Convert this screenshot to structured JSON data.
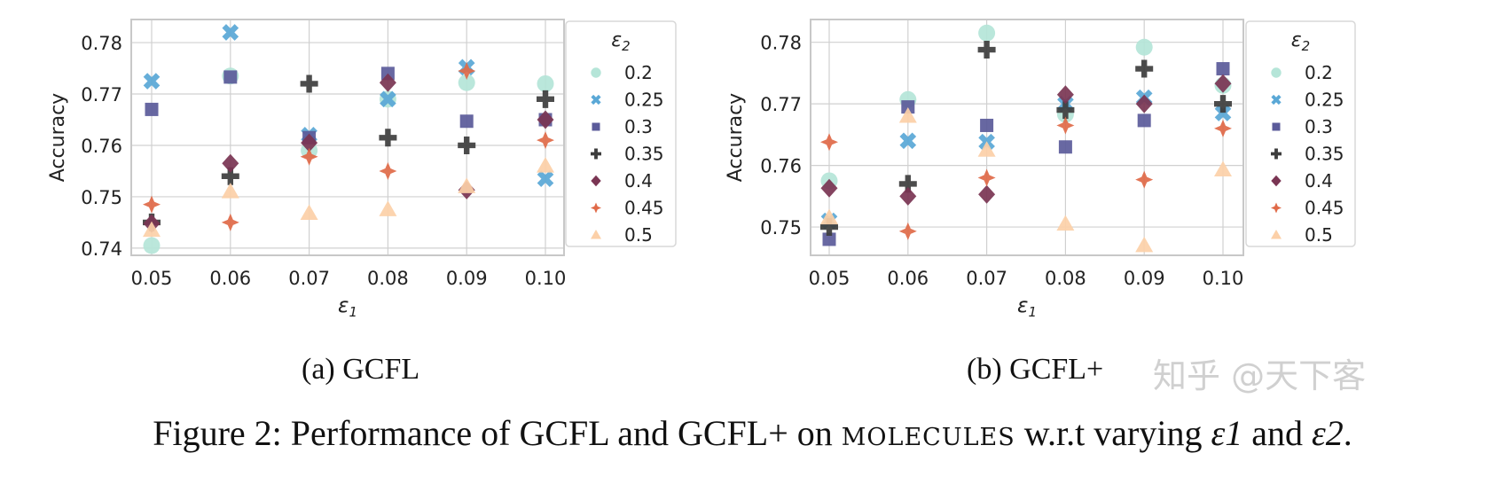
{
  "chart_data": [
    {
      "type": "scatter",
      "subcaption": "(a) GCFL",
      "xlabel": "ε1",
      "ylabel": "Accuracy",
      "x": [
        0.05,
        0.06,
        0.07,
        0.08,
        0.09,
        0.1
      ],
      "xticks": [
        "0.05",
        "0.06",
        "0.07",
        "0.08",
        "0.09",
        "0.10"
      ],
      "yticks": [
        "0.74",
        "0.75",
        "0.76",
        "0.77",
        "0.78"
      ],
      "ylim": [
        0.7386,
        0.7845
      ],
      "grid": true,
      "legend_title": "ε2",
      "legend_position": "outside-right",
      "series": [
        {
          "name": "0.2",
          "marker": "circle",
          "color": "#b5e5d8",
          "values": [
            0.7405,
            0.7735,
            0.759,
            0.769,
            0.7722,
            0.772
          ]
        },
        {
          "name": "0.25",
          "marker": "x",
          "color": "#5aa8d6",
          "values": [
            0.7725,
            0.782,
            0.762,
            0.769,
            0.7752,
            0.7535
          ]
        },
        {
          "name": "0.3",
          "marker": "square",
          "color": "#5b5b9a",
          "values": [
            0.767,
            0.7733,
            0.7615,
            0.774,
            0.7647,
            0.765
          ]
        },
        {
          "name": "0.35",
          "marker": "plus",
          "color": "#3d3d3d",
          "values": [
            0.745,
            0.754,
            0.772,
            0.7615,
            0.76,
            0.769
          ]
        },
        {
          "name": "0.4",
          "marker": "diamond",
          "color": "#7a3553",
          "values": [
            0.7448,
            0.7565,
            0.7605,
            0.7722,
            0.7513,
            0.765
          ]
        },
        {
          "name": "0.45",
          "marker": "star4",
          "color": "#e06a48",
          "values": [
            0.7485,
            0.745,
            0.7578,
            0.755,
            0.7745,
            0.761
          ]
        },
        {
          "name": "0.5",
          "marker": "triangle",
          "color": "#fcd0a8",
          "values": [
            0.7435,
            0.751,
            0.7468,
            0.7475,
            0.752,
            0.756
          ]
        }
      ]
    },
    {
      "type": "scatter",
      "subcaption": "(b) GCFL+",
      "xlabel": "ε1",
      "ylabel": "Accuracy",
      "x": [
        0.05,
        0.06,
        0.07,
        0.08,
        0.09,
        0.1
      ],
      "xticks": [
        "0.05",
        "0.06",
        "0.07",
        "0.08",
        "0.09",
        "0.10"
      ],
      "yticks": [
        "0.75",
        "0.76",
        "0.77",
        "0.78"
      ],
      "ylim": [
        0.7454,
        0.7837
      ],
      "grid": true,
      "legend_title": "ε2",
      "legend_position": "outside-right",
      "series": [
        {
          "name": "0.2",
          "marker": "circle",
          "color": "#b5e5d8",
          "values": [
            0.7575,
            0.7707,
            0.7815,
            0.7683,
            0.7792,
            0.773
          ]
        },
        {
          "name": "0.25",
          "marker": "x",
          "color": "#5aa8d6",
          "values": [
            0.751,
            0.764,
            0.7638,
            0.77,
            0.771,
            0.7685
          ]
        },
        {
          "name": "0.3",
          "marker": "square",
          "color": "#5b5b9a",
          "values": [
            0.748,
            0.7695,
            0.7665,
            0.763,
            0.7673,
            0.7757
          ]
        },
        {
          "name": "0.35",
          "marker": "plus",
          "color": "#3d3d3d",
          "values": [
            0.75,
            0.757,
            0.7788,
            0.769,
            0.7757,
            0.77
          ]
        },
        {
          "name": "0.4",
          "marker": "diamond",
          "color": "#7a3553",
          "values": [
            0.7563,
            0.755,
            0.7553,
            0.7715,
            0.77,
            0.7733
          ]
        },
        {
          "name": "0.45",
          "marker": "star4",
          "color": "#e06a48",
          "values": [
            0.7638,
            0.7493,
            0.758,
            0.7665,
            0.7577,
            0.766
          ]
        },
        {
          "name": "0.5",
          "marker": "triangle",
          "color": "#fcd0a8",
          "values": [
            0.7515,
            0.768,
            0.7625,
            0.7505,
            0.747,
            0.7593
          ]
        }
      ]
    }
  ],
  "caption": {
    "prefix": "Figure 2: Performance of GCFL and GCFL+ on ",
    "dataset": "MOLECULES",
    "middle": " w.r.t varying ",
    "var1": "ε1",
    "and": " and ",
    "var2": "ε2",
    "end": "."
  },
  "watermark": "知乎 @天下客"
}
